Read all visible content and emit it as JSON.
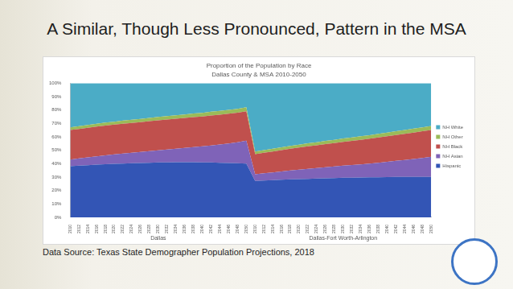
{
  "title": "A Similar, Though Less Pronounced, Pattern in the MSA",
  "source": "Data Source: Texas State Demographer Population Projections, 2018",
  "chart_data": {
    "type": "area",
    "title": "Proportion of the Population by Race",
    "subtitle": "Dallas County & MSA 2010-2050",
    "stacked": true,
    "grid": false,
    "legend": "right",
    "x_groups": [
      "Dallas",
      "Dallas-Fort Worth-Arlington"
    ],
    "categories": [
      "2010",
      "2012",
      "2014",
      "2016",
      "2018",
      "2020",
      "2022",
      "2024",
      "2026",
      "2028",
      "2030",
      "2032",
      "2034",
      "2036",
      "2038",
      "2040",
      "2042",
      "2044",
      "2046",
      "2048",
      "2050",
      "2010",
      "2012",
      "2014",
      "2016",
      "2018",
      "2020",
      "2022",
      "2024",
      "2026",
      "2028",
      "2030",
      "2032",
      "2034",
      "2036",
      "2038",
      "2040",
      "2042",
      "2044",
      "2046",
      "2048",
      "2050"
    ],
    "ylim": [
      0,
      100
    ],
    "yticks": [
      {
        "value": 0,
        "label": "0%"
      },
      {
        "value": 10,
        "label": "10%"
      },
      {
        "value": 20,
        "label": "20%"
      },
      {
        "value": 30,
        "label": "30%"
      },
      {
        "value": 40,
        "label": "40%"
      },
      {
        "value": 50,
        "label": "50%"
      },
      {
        "value": 60,
        "label": "60%"
      },
      {
        "value": 70,
        "label": "70%"
      },
      {
        "value": 80,
        "label": "80%"
      },
      {
        "value": 90,
        "label": "90%"
      },
      {
        "value": 100,
        "label": "100%"
      }
    ],
    "series": [
      {
        "name": "Hispanic",
        "color": "#3355b5",
        "values": [
          38.0,
          38.4,
          38.8,
          39.2,
          39.5,
          39.8,
          40.0,
          40.2,
          40.4,
          40.6,
          40.8,
          40.9,
          41.0,
          41.0,
          41.0,
          40.9,
          40.8,
          40.6,
          40.4,
          40.2,
          40.0,
          27.0,
          27.3,
          27.6,
          27.9,
          28.2,
          28.4,
          28.6,
          28.8,
          29.0,
          29.2,
          29.4,
          29.5,
          29.6,
          29.7,
          29.8,
          29.9,
          30.0,
          30.0,
          30.0,
          30.0,
          30.0
        ]
      },
      {
        "name": "NH Asian",
        "color": "#7f63b8",
        "values": [
          5.0,
          5.4,
          5.8,
          6.2,
          6.6,
          7.0,
          7.4,
          7.8,
          8.2,
          8.6,
          9.0,
          9.5,
          10.0,
          10.6,
          11.2,
          11.9,
          12.7,
          13.6,
          14.6,
          15.7,
          17.0,
          5.0,
          5.4,
          5.8,
          6.2,
          6.6,
          7.0,
          7.4,
          7.8,
          8.2,
          8.6,
          9.0,
          9.4,
          9.8,
          10.3,
          10.8,
          11.4,
          12.0,
          12.7,
          13.4,
          14.2,
          15.0
        ]
      },
      {
        "name": "NH Black",
        "color": "#c0504d",
        "values": [
          22.0,
          22.0,
          22.1,
          22.1,
          22.2,
          22.2,
          22.3,
          22.3,
          22.3,
          22.4,
          22.4,
          22.4,
          22.4,
          22.4,
          22.4,
          22.3,
          22.3,
          22.2,
          22.1,
          22.0,
          22.0,
          15.0,
          15.3,
          15.6,
          15.9,
          16.2,
          16.5,
          16.8,
          17.0,
          17.3,
          17.5,
          17.8,
          18.0,
          18.3,
          18.5,
          18.8,
          19.0,
          19.3,
          19.5,
          19.7,
          19.9,
          20.0
        ]
      },
      {
        "name": "NH Other",
        "color": "#9bbb59",
        "values": [
          2.0,
          2.0,
          2.1,
          2.1,
          2.2,
          2.2,
          2.3,
          2.3,
          2.4,
          2.4,
          2.5,
          2.5,
          2.6,
          2.6,
          2.7,
          2.7,
          2.8,
          2.8,
          2.9,
          2.9,
          3.0,
          2.0,
          2.0,
          2.1,
          2.1,
          2.2,
          2.2,
          2.3,
          2.3,
          2.4,
          2.4,
          2.5,
          2.5,
          2.6,
          2.6,
          2.7,
          2.7,
          2.8,
          2.8,
          2.9,
          2.9,
          3.0
        ]
      },
      {
        "name": "NH White",
        "color": "#4bacc6",
        "values": [
          33.0,
          32.2,
          31.2,
          30.4,
          29.5,
          28.8,
          28.0,
          27.4,
          26.7,
          26.0,
          25.3,
          24.7,
          24.0,
          23.4,
          22.7,
          22.2,
          21.4,
          20.8,
          20.0,
          19.2,
          18.0,
          51.0,
          50.0,
          48.9,
          47.9,
          46.8,
          45.9,
          44.9,
          44.1,
          43.1,
          42.3,
          41.3,
          40.6,
          39.7,
          38.9,
          37.9,
          37.0,
          35.9,
          35.0,
          34.0,
          33.0,
          32.0
        ]
      }
    ]
  }
}
